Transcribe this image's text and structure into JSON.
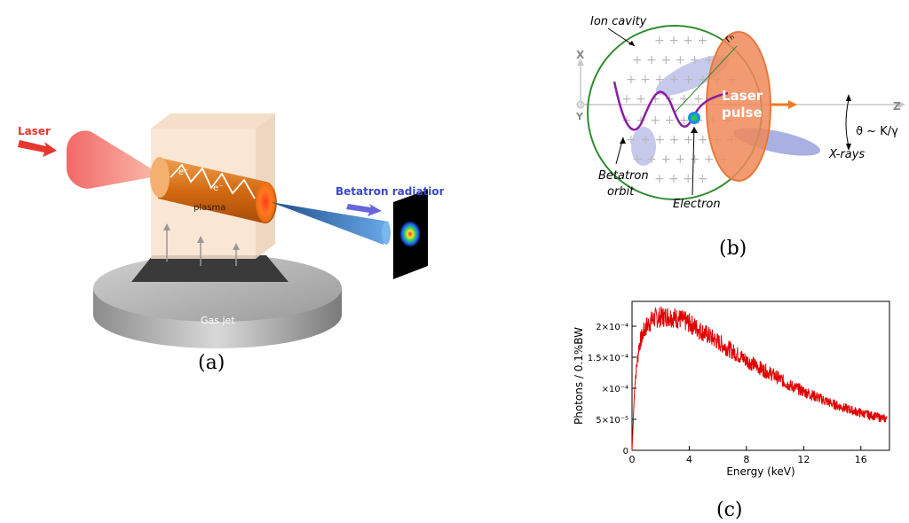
{
  "panel_a": {
    "laser_label": "Laser",
    "electron_label_1": "e⁻",
    "electron_label_2": "e⁻",
    "plasma_label": "plasma",
    "betatron_label": "Betatron radiation",
    "gas_jet_label": "Gas jet",
    "caption": "(a)",
    "colors": {
      "laser": "#e8362e",
      "plasma": "#d86a10",
      "betatron_beam": "#3d7fc8",
      "arrow": "#6666dd"
    }
  },
  "panel_b": {
    "ion_cavity_label": "Ion cavity",
    "rb_label": "rₕ",
    "x_axis_label": "X",
    "y_axis_label": "Y",
    "z_axis_label": "Z",
    "laser_pulse_line1": "Laser",
    "laser_pulse_line2": "pulse",
    "angle_label": "ϑ ~ K/γ",
    "xrays_label": "X-rays",
    "betatron_orbit_line1": "Betatron",
    "betatron_orbit_line2": "orbit",
    "electron_label": "Electron",
    "caption": "(b)",
    "colors": {
      "cavity": "#2e8b2e",
      "orbit": "#8a1e9e",
      "laser": "#f08a5a",
      "xrays": "#9aa2dd"
    }
  },
  "panel_c": {
    "caption": "(c)",
    "line_color": "#e00000"
  },
  "chart_data": {
    "type": "line",
    "title": "",
    "xlabel": "Energy (keV)",
    "ylabel": "Photons / 0.1%BW",
    "xlim": [
      0,
      18
    ],
    "ylim": [
      0,
      0.00024
    ],
    "x_ticks": [
      "0",
      "4",
      "8",
      "12",
      "16"
    ],
    "y_ticks": [
      "0",
      "5×10⁻⁵",
      "×10⁻⁴",
      "1.5×10⁻⁴",
      "2×10⁻⁴"
    ],
    "x_tick_values": [
      0,
      4,
      8,
      12,
      16
    ],
    "y_tick_values": [
      0,
      5e-05,
      0.0001,
      0.00015,
      0.0002
    ],
    "series": [
      {
        "x": [
          0,
          0.2,
          0.5,
          0.8,
          1.0,
          1.5,
          2.0,
          2.5,
          3.0,
          3.5,
          4.0,
          5.0,
          6.0,
          7.0,
          8.0,
          9.0,
          10.0,
          11.0,
          12.0,
          13.0,
          14.0,
          15.0,
          16.0,
          17.0,
          17.8
        ],
        "y": [
          0,
          0.00011,
          0.00017,
          0.00019,
          0.0002,
          0.000212,
          0.000215,
          0.000216,
          0.000214,
          0.00021,
          0.000205,
          0.00019,
          0.000175,
          0.00016,
          0.000145,
          0.000132,
          0.00012,
          0.000105,
          9.5e-05,
          8.5e-05,
          7.5e-05,
          6.7e-05,
          6e-05,
          5.5e-05,
          5e-05
        ]
      }
    ]
  }
}
